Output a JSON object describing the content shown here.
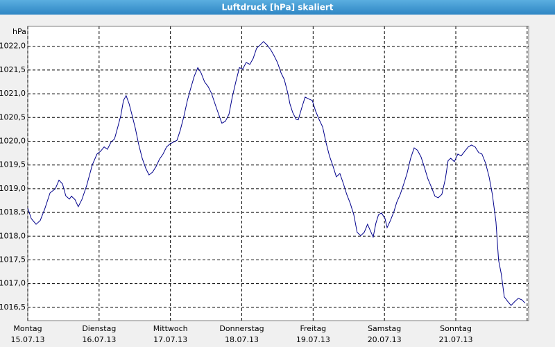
{
  "chart_data": {
    "type": "line",
    "title": "Luftdruck [hPa] skaliert",
    "y_unit": "hPa",
    "xlim": [
      0,
      168.5
    ],
    "ylim": [
      1016.22,
      1022.42
    ],
    "xticks": [
      {
        "value": 0,
        "label": "Montag",
        "sublabel": "15.07.13"
      },
      {
        "value": 24,
        "label": "Dienstag",
        "sublabel": "16.07.13"
      },
      {
        "value": 48,
        "label": "Mittwoch",
        "sublabel": "17.07.13"
      },
      {
        "value": 72,
        "label": "Donnerstag",
        "sublabel": "18.07.13"
      },
      {
        "value": 96,
        "label": "Freitag",
        "sublabel": "19.07.13"
      },
      {
        "value": 120,
        "label": "Samstag",
        "sublabel": "20.07.13"
      },
      {
        "value": 144,
        "label": "Sonntag",
        "sublabel": "21.07.13"
      },
      {
        "value": 168,
        "label": null,
        "sublabel": null
      }
    ],
    "yticks": [
      {
        "value": 1016.5,
        "label": "1016,5"
      },
      {
        "value": 1017.0,
        "label": "1017,0"
      },
      {
        "value": 1017.5,
        "label": "1017,5"
      },
      {
        "value": 1018.0,
        "label": "1018,0"
      },
      {
        "value": 1018.5,
        "label": "1018,5"
      },
      {
        "value": 1019.0,
        "label": "1019,0"
      },
      {
        "value": 1019.5,
        "label": "1019,5"
      },
      {
        "value": 1020.0,
        "label": "1020,0"
      },
      {
        "value": 1020.5,
        "label": "1020,5"
      },
      {
        "value": 1021.0,
        "label": "1021,0"
      },
      {
        "value": 1021.5,
        "label": "1021,5"
      },
      {
        "value": 1022.0,
        "label": "1022,0"
      }
    ],
    "grid": true,
    "series": [
      {
        "name": "Luftdruck",
        "color": "#00008b",
        "x": [
          0,
          1.2,
          2.8,
          4.2,
          5.8,
          7.5,
          9.3,
          10.5,
          11.7,
          12.8,
          14.0,
          14.7,
          15.9,
          17.0,
          18.2,
          19.8,
          21.7,
          23.3,
          24.5,
          25.7,
          26.8,
          28.0,
          29.2,
          30.3,
          31.3,
          32.2,
          33.1,
          34.1,
          35.0,
          36.2,
          37.3,
          38.5,
          39.7,
          40.8,
          42.0,
          43.2,
          44.3,
          45.5,
          46.7,
          47.8,
          50.2,
          51.3,
          52.5,
          53.7,
          54.8,
          56.0,
          57.2,
          58.3,
          59.5,
          60.7,
          61.8,
          63.0,
          64.2,
          65.3,
          66.5,
          67.7,
          68.8,
          70.0,
          71.2,
          72.3,
          73.5,
          74.7,
          75.8,
          77.0,
          78.2,
          79.3,
          80.5,
          81.7,
          82.8,
          84.0,
          85.2,
          86.3,
          87.5,
          88.2,
          89.1,
          90.3,
          91.0,
          92.2,
          93.3,
          94.5,
          95.7,
          96.8,
          98.0,
          99.2,
          100.3,
          101.5,
          102.7,
          103.8,
          105.0,
          106.2,
          107.3,
          108.5,
          109.7,
          110.8,
          112.0,
          113.2,
          114.3,
          115.5,
          116.2,
          117.1,
          118.0,
          119.0,
          120.2,
          120.9,
          122.0,
          123.2,
          124.1,
          125.3,
          126.5,
          127.6,
          128.8,
          130.0,
          131.1,
          132.3,
          133.5,
          134.6,
          135.8,
          137.0,
          138.1,
          139.3,
          140.5,
          141.4,
          142.3,
          143.5,
          144.7,
          145.8,
          147.0,
          148.2,
          149.3,
          150.5,
          151.7,
          152.8,
          154.0,
          155.2,
          156.3,
          157.5,
          158.4,
          159.3,
          160.3,
          161.5,
          162.6,
          163.8,
          165.0,
          166.2,
          167.3
        ],
        "values": [
          1018.59,
          1018.37,
          1018.25,
          1018.33,
          1018.59,
          1018.91,
          1019.0,
          1019.18,
          1019.1,
          1018.85,
          1018.78,
          1018.84,
          1018.77,
          1018.62,
          1018.77,
          1019.06,
          1019.5,
          1019.73,
          1019.79,
          1019.88,
          1019.83,
          1019.98,
          1020.05,
          1020.3,
          1020.54,
          1020.86,
          1020.96,
          1020.79,
          1020.57,
          1020.27,
          1019.94,
          1019.64,
          1019.43,
          1019.29,
          1019.35,
          1019.47,
          1019.62,
          1019.73,
          1019.88,
          1019.94,
          1020.02,
          1020.23,
          1020.52,
          1020.86,
          1021.11,
          1021.37,
          1021.55,
          1021.44,
          1021.25,
          1021.15,
          1021.01,
          1020.79,
          1020.57,
          1020.38,
          1020.42,
          1020.57,
          1020.93,
          1021.25,
          1021.55,
          1021.52,
          1021.66,
          1021.62,
          1021.74,
          1021.96,
          1022.03,
          1022.1,
          1022.03,
          1021.93,
          1021.81,
          1021.66,
          1021.44,
          1021.3,
          1021.01,
          1020.79,
          1020.61,
          1020.46,
          1020.45,
          1020.71,
          1020.93,
          1020.89,
          1020.86,
          1020.64,
          1020.46,
          1020.3,
          1019.98,
          1019.69,
          1019.47,
          1019.25,
          1019.32,
          1019.1,
          1018.88,
          1018.69,
          1018.45,
          1018.08,
          1018.01,
          1018.08,
          1018.25,
          1018.08,
          1017.98,
          1018.27,
          1018.45,
          1018.49,
          1018.37,
          1018.18,
          1018.33,
          1018.52,
          1018.71,
          1018.88,
          1019.1,
          1019.32,
          1019.64,
          1019.86,
          1019.81,
          1019.67,
          1019.44,
          1019.21,
          1019.03,
          1018.84,
          1018.81,
          1018.88,
          1019.21,
          1019.59,
          1019.64,
          1019.57,
          1019.73,
          1019.69,
          1019.79,
          1019.88,
          1019.92,
          1019.88,
          1019.76,
          1019.73,
          1019.54,
          1019.25,
          1018.88,
          1018.3,
          1017.49,
          1017.2,
          1016.72,
          1016.62,
          1016.54,
          1016.62,
          1016.69,
          1016.66,
          1016.59
        ]
      }
    ]
  }
}
